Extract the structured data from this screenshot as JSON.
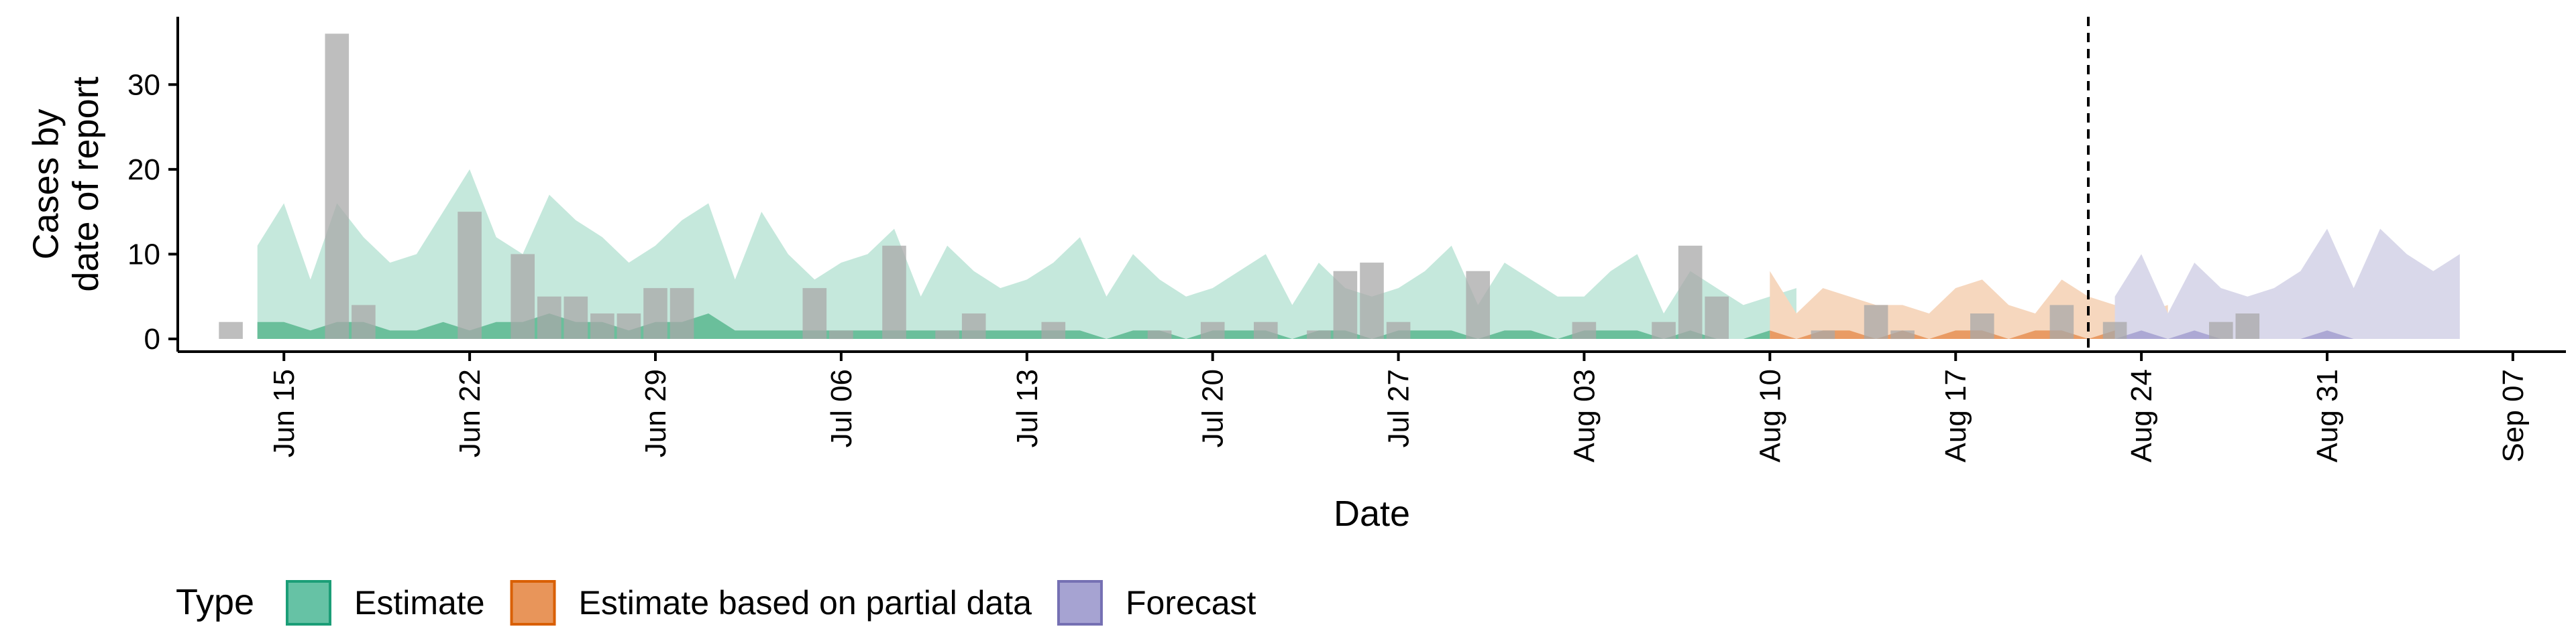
{
  "chart_data": {
    "type": "area",
    "title": "",
    "xlabel": "Date",
    "ylabel_lines": [
      "Cases by",
      "date of report"
    ],
    "x_range": [
      "2020-06-11",
      "2020-09-09"
    ],
    "ylim": [
      -1.5,
      38
    ],
    "y_ticks": [
      0,
      10,
      20,
      30
    ],
    "x_ticks": [
      {
        "date": "2020-06-15",
        "label": "Jun 15"
      },
      {
        "date": "2020-06-22",
        "label": "Jun 22"
      },
      {
        "date": "2020-06-29",
        "label": "Jun 29"
      },
      {
        "date": "2020-07-06",
        "label": "Jul 06"
      },
      {
        "date": "2020-07-13",
        "label": "Jul 13"
      },
      {
        "date": "2020-07-20",
        "label": "Jul 20"
      },
      {
        "date": "2020-07-27",
        "label": "Jul 27"
      },
      {
        "date": "2020-08-03",
        "label": "Aug 03"
      },
      {
        "date": "2020-08-10",
        "label": "Aug 10"
      },
      {
        "date": "2020-08-17",
        "label": "Aug 17"
      },
      {
        "date": "2020-08-24",
        "label": "Aug 24"
      },
      {
        "date": "2020-08-31",
        "label": "Aug 31"
      },
      {
        "date": "2020-09-07",
        "label": "Sep 07"
      }
    ],
    "forecast_date": "2020-08-22",
    "legend": {
      "title": "Type",
      "position": "bottom",
      "entries": [
        {
          "label": "Estimate",
          "fill": "#66c2a5",
          "stroke": "#1b9e77"
        },
        {
          "label": "Estimate based on partial data",
          "fill": "#e8955a",
          "stroke": "#d95f02"
        },
        {
          "label": "Forecast",
          "fill": "#a6a3d2",
          "stroke": "#7570b3"
        }
      ]
    },
    "series": [
      {
        "type": "Estimate",
        "start_date": "2020-06-14",
        "outer_fill": "#c5e8dc",
        "inner_fill": "#5fba94",
        "upper": [
          11,
          16,
          7,
          16,
          12,
          9,
          10,
          15,
          20,
          12,
          10,
          17,
          14,
          12,
          9,
          11,
          14,
          16,
          7,
          15,
          10,
          7,
          9,
          10,
          13,
          5,
          11,
          8,
          6,
          7,
          9,
          12,
          5,
          10,
          7,
          5,
          6,
          8,
          10,
          4,
          9,
          6,
          5,
          6,
          8,
          11,
          4,
          9,
          7,
          5,
          5,
          8,
          10,
          3,
          8,
          6,
          4,
          5,
          6
        ],
        "lower": [
          0,
          0,
          0,
          0,
          0,
          0,
          0,
          0,
          0,
          0,
          0,
          0,
          0,
          0,
          0,
          0,
          0,
          0,
          0,
          0,
          0,
          0,
          0,
          0,
          0,
          0,
          0,
          0,
          0,
          0,
          0,
          0,
          0,
          0,
          0,
          0,
          0,
          0,
          0,
          0,
          0,
          0,
          0,
          0,
          0,
          0,
          0,
          0,
          0,
          0,
          0,
          0,
          0,
          0,
          0,
          0,
          0,
          0,
          0
        ],
        "inner_upper": [
          2,
          2,
          1,
          2,
          2,
          1,
          1,
          2,
          1,
          2,
          2,
          3,
          2,
          2,
          1,
          2,
          2,
          3,
          1,
          1,
          1,
          1,
          1,
          1,
          1,
          1,
          1,
          1,
          1,
          1,
          1,
          1,
          0,
          1,
          1,
          0,
          1,
          1,
          1,
          0,
          1,
          1,
          0,
          1,
          1,
          1,
          0,
          1,
          1,
          0,
          1,
          1,
          1,
          0,
          1,
          0,
          0,
          1,
          0
        ]
      },
      {
        "type": "Estimate based on partial data",
        "start_date": "2020-08-10",
        "outer_fill": "#f6d7be",
        "inner_fill": "#e8955a",
        "upper": [
          8,
          3,
          6,
          5,
          4,
          4,
          3,
          6,
          7,
          4,
          3,
          7,
          5,
          4,
          3,
          4
        ],
        "lower": [
          0,
          0,
          0,
          0,
          0,
          0,
          0,
          0,
          0,
          0,
          0,
          0,
          0,
          0,
          0,
          0
        ],
        "inner_upper": [
          1,
          0,
          1,
          1,
          0,
          1,
          0,
          1,
          1,
          0,
          1,
          1,
          0,
          1,
          0,
          0
        ]
      },
      {
        "type": "Forecast",
        "start_date": "2020-08-23",
        "outer_fill": "#d9d8ea",
        "inner_fill": "#a6a3d2",
        "upper": [
          5,
          10,
          3,
          9,
          6,
          5,
          6,
          8,
          13,
          6,
          13,
          10,
          8,
          10
        ],
        "lower": [
          0,
          0,
          0,
          0,
          0,
          0,
          0,
          0,
          0,
          0,
          0,
          0,
          0,
          0
        ],
        "inner_upper": [
          0,
          1,
          0,
          1,
          0,
          0,
          0,
          0,
          1,
          0,
          0,
          0,
          0,
          0
        ]
      }
    ],
    "reported_cases": {
      "start_date": "2020-06-13",
      "fill": "#a8a8a8",
      "values": [
        2,
        0,
        0,
        0,
        36,
        4,
        0,
        0,
        0,
        15,
        0,
        10,
        5,
        5,
        3,
        3,
        6,
        6,
        0,
        0,
        0,
        0,
        6,
        1,
        0,
        11,
        0,
        1,
        3,
        0,
        0,
        2,
        0,
        0,
        0,
        1,
        0,
        2,
        0,
        2,
        0,
        1,
        8,
        9,
        2,
        0,
        0,
        8,
        0,
        0,
        0,
        2,
        0,
        0,
        2,
        11,
        5,
        0,
        0,
        0,
        1,
        0,
        4,
        1,
        0,
        0,
        3,
        0,
        0,
        4,
        0,
        2,
        0,
        0,
        0,
        2,
        3
      ]
    }
  }
}
